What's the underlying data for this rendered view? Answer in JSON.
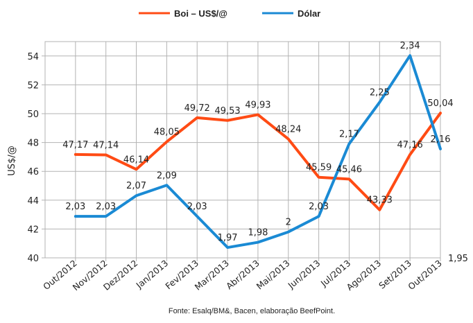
{
  "chart_data": {
    "type": "line",
    "categories": [
      "Out/2012",
      "Nov/2012",
      "Dez/2012",
      "Jan/2013",
      "Fev/2013",
      "Mar/2013",
      "Abr/2013",
      "Mai/2013",
      "Jun/2013",
      "Jul/2013",
      "Ago/2013",
      "Set/2013",
      "Out/2013"
    ],
    "series": [
      {
        "name": "Boi – US$/@",
        "color": "#ff4b14",
        "axis": "left",
        "values": [
          47.17,
          47.14,
          46.14,
          48.05,
          49.72,
          49.53,
          49.93,
          48.24,
          45.59,
          45.46,
          43.33,
          47.16,
          50.04
        ],
        "labels": [
          "47,17",
          "47,14",
          "46,14",
          "48,05",
          "49,72",
          "49,53",
          "49,93",
          "48,24",
          "45,59",
          "45,46",
          "43,33",
          "47,16",
          "50,04"
        ]
      },
      {
        "name": "Dólar",
        "color": "#1a8ad4",
        "axis": "right",
        "values": [
          2.03,
          2.03,
          2.07,
          2.09,
          2.03,
          1.97,
          1.98,
          2.0,
          2.03,
          2.17,
          2.25,
          2.34,
          2.16
        ],
        "labels": [
          "2,03",
          "2,03",
          "2,07",
          "2,09",
          "2,03",
          "1,97",
          "1,98",
          "2",
          "2,03",
          "2,17",
          "2,25",
          "2,34",
          "2,16"
        ]
      }
    ],
    "ylabel": "US$/@",
    "yticks": [
      "40",
      "42",
      "44",
      "46",
      "48",
      "50",
      "52",
      "54"
    ],
    "ylim": [
      40,
      55
    ],
    "y2_tick_label": "1,95",
    "y2lim": [
      1.95,
      2.367
    ],
    "grid": true,
    "legend": "top-center",
    "source": "Fonte: Esalq/BM&, Bacen, elaboração BeefPoint."
  }
}
